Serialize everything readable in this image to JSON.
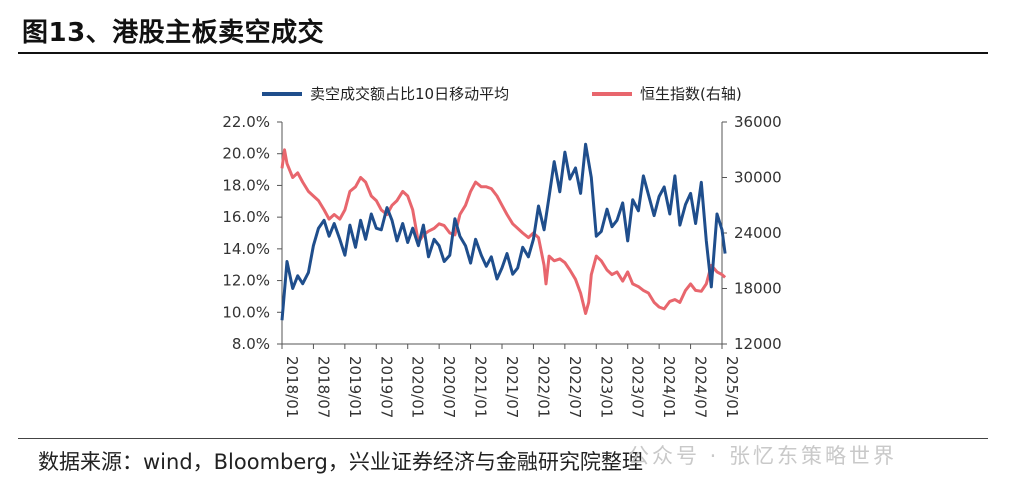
{
  "title": "图13、港股主板卖空成交",
  "source": "数据来源：wind，Bloomberg，兴业证券经济与金融研究院整理",
  "watermark": "公众号 · 张忆东策略世界",
  "colors": {
    "blue": "#1f4e8c",
    "red": "#e8666d"
  },
  "chart_data": {
    "type": "line",
    "title": "",
    "left_axis": {
      "min": 8.0,
      "max": 22.0,
      "ticks": [
        "8.0%",
        "10.0%",
        "12.0%",
        "14.0%",
        "16.0%",
        "18.0%",
        "20.0%",
        "22.0%"
      ]
    },
    "right_axis": {
      "min": 12000,
      "max": 36000,
      "ticks": [
        "12000",
        "18000",
        "24000",
        "30000",
        "36000"
      ]
    },
    "x_ticks": [
      "2018/01",
      "2018/07",
      "2019/01",
      "2019/07",
      "2020/01",
      "2020/07",
      "2021/01",
      "2021/07",
      "2022/01",
      "2022/07",
      "2023/01",
      "2023/07",
      "2024/01",
      "2024/07",
      "2025/01"
    ],
    "legend": [
      "卖空成交额占比10日移动平均",
      "恒生指数(右轴)"
    ],
    "series": [
      {
        "name": "卖空成交额占比10日移动平均",
        "axis": "left",
        "color": "#1f4e8c",
        "x": [
          2018.0,
          2018.08,
          2018.17,
          2018.25,
          2018.33,
          2018.42,
          2018.5,
          2018.58,
          2018.67,
          2018.75,
          2018.83,
          2018.92,
          2019.0,
          2019.08,
          2019.17,
          2019.25,
          2019.33,
          2019.42,
          2019.5,
          2019.58,
          2019.67,
          2019.75,
          2019.83,
          2019.92,
          2020.0,
          2020.08,
          2020.17,
          2020.25,
          2020.33,
          2020.42,
          2020.5,
          2020.58,
          2020.67,
          2020.75,
          2020.83,
          2020.92,
          2021.0,
          2021.08,
          2021.17,
          2021.25,
          2021.33,
          2021.42,
          2021.5,
          2021.58,
          2021.67,
          2021.75,
          2021.83,
          2021.92,
          2022.0,
          2022.08,
          2022.17,
          2022.25,
          2022.33,
          2022.42,
          2022.5,
          2022.58,
          2022.67,
          2022.75,
          2022.83,
          2022.92,
          2023.0,
          2023.08,
          2023.17,
          2023.25,
          2023.33,
          2023.42,
          2023.5,
          2023.58,
          2023.67,
          2023.75,
          2023.83,
          2023.92,
          2024.0,
          2024.08,
          2024.17,
          2024.25,
          2024.33,
          2024.42,
          2024.5,
          2024.58,
          2024.67,
          2024.75,
          2024.83,
          2024.92,
          2025.0,
          2025.05
        ],
        "y": [
          9.5,
          13.2,
          11.5,
          12.3,
          11.8,
          12.5,
          14.2,
          15.3,
          15.8,
          14.8,
          15.6,
          14.6,
          13.6,
          15.5,
          14.1,
          15.8,
          14.6,
          16.2,
          15.3,
          15.2,
          16.6,
          15.8,
          14.5,
          15.6,
          14.4,
          15.3,
          14.2,
          15.5,
          13.5,
          14.6,
          14.2,
          13.2,
          13.6,
          15.9,
          14.8,
          14.2,
          13.1,
          14.6,
          13.6,
          12.9,
          13.5,
          12.1,
          12.8,
          13.7,
          12.4,
          12.8,
          14.1,
          13.5,
          14.6,
          16.7,
          15.2,
          17.3,
          19.5,
          17.6,
          20.1,
          18.4,
          19.1,
          17.5,
          20.6,
          18.5,
          14.8,
          15.1,
          16.5,
          15.4,
          15.8,
          16.9,
          14.5,
          17.1,
          16.4,
          18.6,
          17.4,
          16.1,
          17.3,
          17.9,
          16.2,
          18.6,
          15.5,
          16.8,
          17.5,
          15.6,
          18.2,
          14.5,
          11.6,
          16.2,
          15.2,
          13.7
        ]
      },
      {
        "name": "恒生指数(右轴)",
        "axis": "right",
        "color": "#e8666d",
        "x": [
          2018.0,
          2018.04,
          2018.08,
          2018.17,
          2018.25,
          2018.33,
          2018.42,
          2018.5,
          2018.58,
          2018.67,
          2018.75,
          2018.83,
          2018.92,
          2019.0,
          2019.08,
          2019.17,
          2019.25,
          2019.33,
          2019.42,
          2019.5,
          2019.58,
          2019.67,
          2019.75,
          2019.83,
          2019.92,
          2020.0,
          2020.08,
          2020.17,
          2020.25,
          2020.33,
          2020.42,
          2020.5,
          2020.58,
          2020.67,
          2020.75,
          2020.83,
          2020.92,
          2021.0,
          2021.08,
          2021.17,
          2021.25,
          2021.33,
          2021.42,
          2021.5,
          2021.58,
          2021.67,
          2021.75,
          2021.83,
          2021.92,
          2022.0,
          2022.08,
          2022.17,
          2022.2,
          2022.25,
          2022.33,
          2022.42,
          2022.5,
          2022.58,
          2022.67,
          2022.75,
          2022.83,
          2022.88,
          2022.92,
          2023.0,
          2023.08,
          2023.17,
          2023.25,
          2023.33,
          2023.42,
          2023.5,
          2023.58,
          2023.67,
          2023.75,
          2023.83,
          2023.92,
          2024.0,
          2024.08,
          2024.17,
          2024.25,
          2024.33,
          2024.42,
          2024.5,
          2024.58,
          2024.67,
          2024.75,
          2024.83,
          2024.92,
          2025.0,
          2025.05
        ],
        "y": [
          31000,
          33000,
          31500,
          30000,
          30500,
          29500,
          28500,
          28000,
          27500,
          26500,
          25500,
          26000,
          25500,
          26500,
          28500,
          29000,
          30000,
          29500,
          28000,
          27500,
          26500,
          26000,
          27000,
          27500,
          28500,
          28000,
          26500,
          23000,
          23800,
          24200,
          24500,
          25000,
          24800,
          24000,
          23800,
          26000,
          27000,
          28500,
          29500,
          29000,
          29000,
          28800,
          28000,
          27000,
          26000,
          25000,
          24500,
          24000,
          23500,
          24000,
          23500,
          20500,
          18500,
          21500,
          21000,
          21200,
          20800,
          20000,
          19000,
          17500,
          15300,
          16500,
          19500,
          21500,
          21000,
          20000,
          19500,
          19800,
          18800,
          19800,
          18500,
          18200,
          17800,
          17500,
          16500,
          16000,
          15800,
          16600,
          16800,
          16500,
          17800,
          18500,
          17800,
          17700,
          18500,
          20500,
          19800,
          19500,
          19200
        ]
      }
    ]
  }
}
